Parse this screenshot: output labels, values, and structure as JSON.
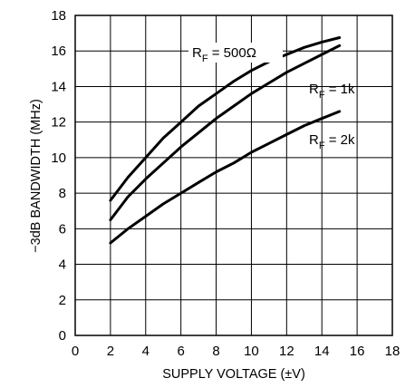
{
  "chart_data": {
    "type": "line",
    "title": "",
    "xlabel": "SUPPLY VOLTAGE (±V)",
    "ylabel": "−3dB BANDWIDTH (MHz)",
    "xlim": [
      0,
      18
    ],
    "ylim": [
      0,
      18
    ],
    "xticks": [
      0,
      2,
      4,
      6,
      8,
      10,
      12,
      14,
      16,
      18
    ],
    "yticks": [
      0,
      2,
      4,
      6,
      8,
      10,
      12,
      14,
      16,
      18
    ],
    "grid": true,
    "line_color": "#000000",
    "series": [
      {
        "name_main": "R",
        "name_sub": "F",
        "name_rest": " = 500Ω",
        "x": [
          2,
          3,
          4,
          5,
          6,
          7,
          8,
          9,
          10,
          11,
          12,
          13,
          14,
          15
        ],
        "y": [
          7.6,
          8.9,
          10.0,
          11.1,
          12.0,
          12.9,
          13.6,
          14.3,
          14.9,
          15.4,
          15.8,
          16.2,
          16.5,
          16.75
        ]
      },
      {
        "name_main": "R",
        "name_sub": "F",
        "name_rest": " = 1k",
        "x": [
          2,
          3,
          4,
          5,
          6,
          7,
          8,
          9,
          10,
          11,
          12,
          13,
          14,
          15
        ],
        "y": [
          6.5,
          7.8,
          8.8,
          9.7,
          10.6,
          11.4,
          12.2,
          12.9,
          13.6,
          14.2,
          14.8,
          15.3,
          15.8,
          16.3
        ]
      },
      {
        "name_main": "R",
        "name_sub": "F",
        "name_rest": " = 2k",
        "x": [
          2,
          3,
          4,
          5,
          6,
          7,
          8,
          9,
          10,
          11,
          12,
          13,
          14,
          15
        ],
        "y": [
          5.2,
          6.0,
          6.7,
          7.4,
          8.0,
          8.6,
          9.2,
          9.7,
          10.3,
          10.8,
          11.3,
          11.8,
          12.2,
          12.6
        ]
      }
    ]
  }
}
